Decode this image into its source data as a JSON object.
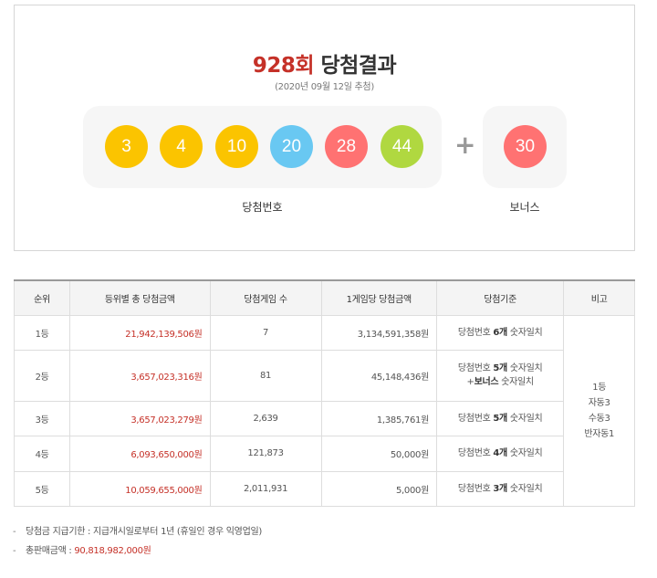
{
  "header": {
    "round": "928회",
    "title": "당첨결과",
    "draw_date": "(2020년 09월 12일 추첨)"
  },
  "numbers": {
    "winning": [
      {
        "value": "3",
        "color": "#fbc400"
      },
      {
        "value": "4",
        "color": "#fbc400"
      },
      {
        "value": "10",
        "color": "#fbc400"
      },
      {
        "value": "20",
        "color": "#69c8f2"
      },
      {
        "value": "28",
        "color": "#ff7272"
      },
      {
        "value": "44",
        "color": "#b0d840"
      }
    ],
    "plus": "+",
    "bonus": {
      "value": "30",
      "color": "#ff7272"
    },
    "winning_label": "당첨번호",
    "bonus_label": "보너스"
  },
  "table": {
    "headers": [
      "순위",
      "등위별 총 당첨금액",
      "당첨게임 수",
      "1게임당 당첨금액",
      "당첨기준",
      "비고"
    ],
    "rows": [
      {
        "rank": "1등",
        "total": "21,942,139,506원",
        "count": "7",
        "per": "3,134,591,358원",
        "rule_pre": "당첨번호 ",
        "rule_bold": "6개",
        "rule_post": " 숫자일치"
      },
      {
        "rank": "2등",
        "total": "3,657,023,316원",
        "count": "81",
        "per": "45,148,436원",
        "rule_pre": "당첨번호 ",
        "rule_bold": "5개",
        "rule_post": " 숫자일치",
        "rule2_pre": "+",
        "rule2_bold": "보너스",
        "rule2_post": " 숫자일치"
      },
      {
        "rank": "3등",
        "total": "3,657,023,279원",
        "count": "2,639",
        "per": "1,385,761원",
        "rule_pre": "당첨번호 ",
        "rule_bold": "5개",
        "rule_post": " 숫자일치"
      },
      {
        "rank": "4등",
        "total": "6,093,650,000원",
        "count": "121,873",
        "per": "50,000원",
        "rule_pre": "당첨번호 ",
        "rule_bold": "4개",
        "rule_post": " 숫자일치"
      },
      {
        "rank": "5등",
        "total": "10,059,655,000원",
        "count": "2,011,931",
        "per": "5,000원",
        "rule_pre": "당첨번호 ",
        "rule_bold": "3개",
        "rule_post": " 숫자일치"
      }
    ],
    "note_lines": [
      "1등",
      "자동3",
      "수동3",
      "반자동1"
    ]
  },
  "notes": {
    "dash": "-",
    "deadline": "당첨금 지급기한 : 지급개시일로부터 1년 (휴일인 경우 익영업일)",
    "sales_label": "총판매금액 : ",
    "sales_value": "90,818,982,000원"
  }
}
